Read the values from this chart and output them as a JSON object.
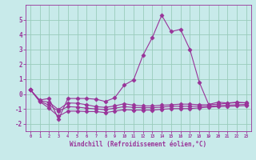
{
  "xlabel": "Windchill (Refroidissement éolien,°C)",
  "background_color": "#c8eaea",
  "grid_color": "#99ccbb",
  "line_color": "#993399",
  "x": [
    0,
    1,
    2,
    3,
    4,
    5,
    6,
    7,
    8,
    9,
    10,
    11,
    12,
    13,
    14,
    15,
    16,
    17,
    18,
    19,
    20,
    21,
    22,
    23
  ],
  "series1": [
    0.3,
    -0.4,
    -0.3,
    -1.7,
    -0.3,
    -0.3,
    -0.3,
    -0.35,
    -0.5,
    -0.25,
    0.6,
    0.95,
    2.6,
    3.8,
    5.3,
    4.2,
    4.35,
    3.0,
    0.8,
    -0.7,
    -0.55,
    -0.6,
    -0.55,
    -0.6
  ],
  "series2": [
    0.3,
    -0.45,
    -0.55,
    -1.05,
    -0.6,
    -0.62,
    -0.72,
    -0.85,
    -0.9,
    -0.8,
    -0.65,
    -0.75,
    -0.8,
    -0.8,
    -0.75,
    -0.72,
    -0.68,
    -0.68,
    -0.72,
    -0.72,
    -0.68,
    -0.62,
    -0.58,
    -0.58
  ],
  "series3": [
    0.3,
    -0.48,
    -0.75,
    -1.15,
    -0.85,
    -0.88,
    -0.95,
    -1.0,
    -1.05,
    -0.95,
    -0.85,
    -0.9,
    -0.92,
    -0.92,
    -0.88,
    -0.82,
    -0.82,
    -0.82,
    -0.82,
    -0.82,
    -0.78,
    -0.75,
    -0.72,
    -0.7
  ],
  "series4": [
    0.3,
    -0.5,
    -0.95,
    -1.5,
    -1.15,
    -1.15,
    -1.18,
    -1.18,
    -1.25,
    -1.15,
    -1.05,
    -1.08,
    -1.08,
    -1.08,
    -1.03,
    -0.98,
    -0.98,
    -0.98,
    -0.93,
    -0.88,
    -0.85,
    -0.83,
    -0.8,
    -0.78
  ],
  "ylim": [
    -2.5,
    6.0
  ],
  "xlim": [
    -0.5,
    23.5
  ],
  "yticks": [
    -2,
    -1,
    0,
    1,
    2,
    3,
    4,
    5
  ],
  "xticks": [
    0,
    1,
    2,
    3,
    4,
    5,
    6,
    7,
    8,
    9,
    10,
    11,
    12,
    13,
    14,
    15,
    16,
    17,
    18,
    19,
    20,
    21,
    22,
    23
  ]
}
